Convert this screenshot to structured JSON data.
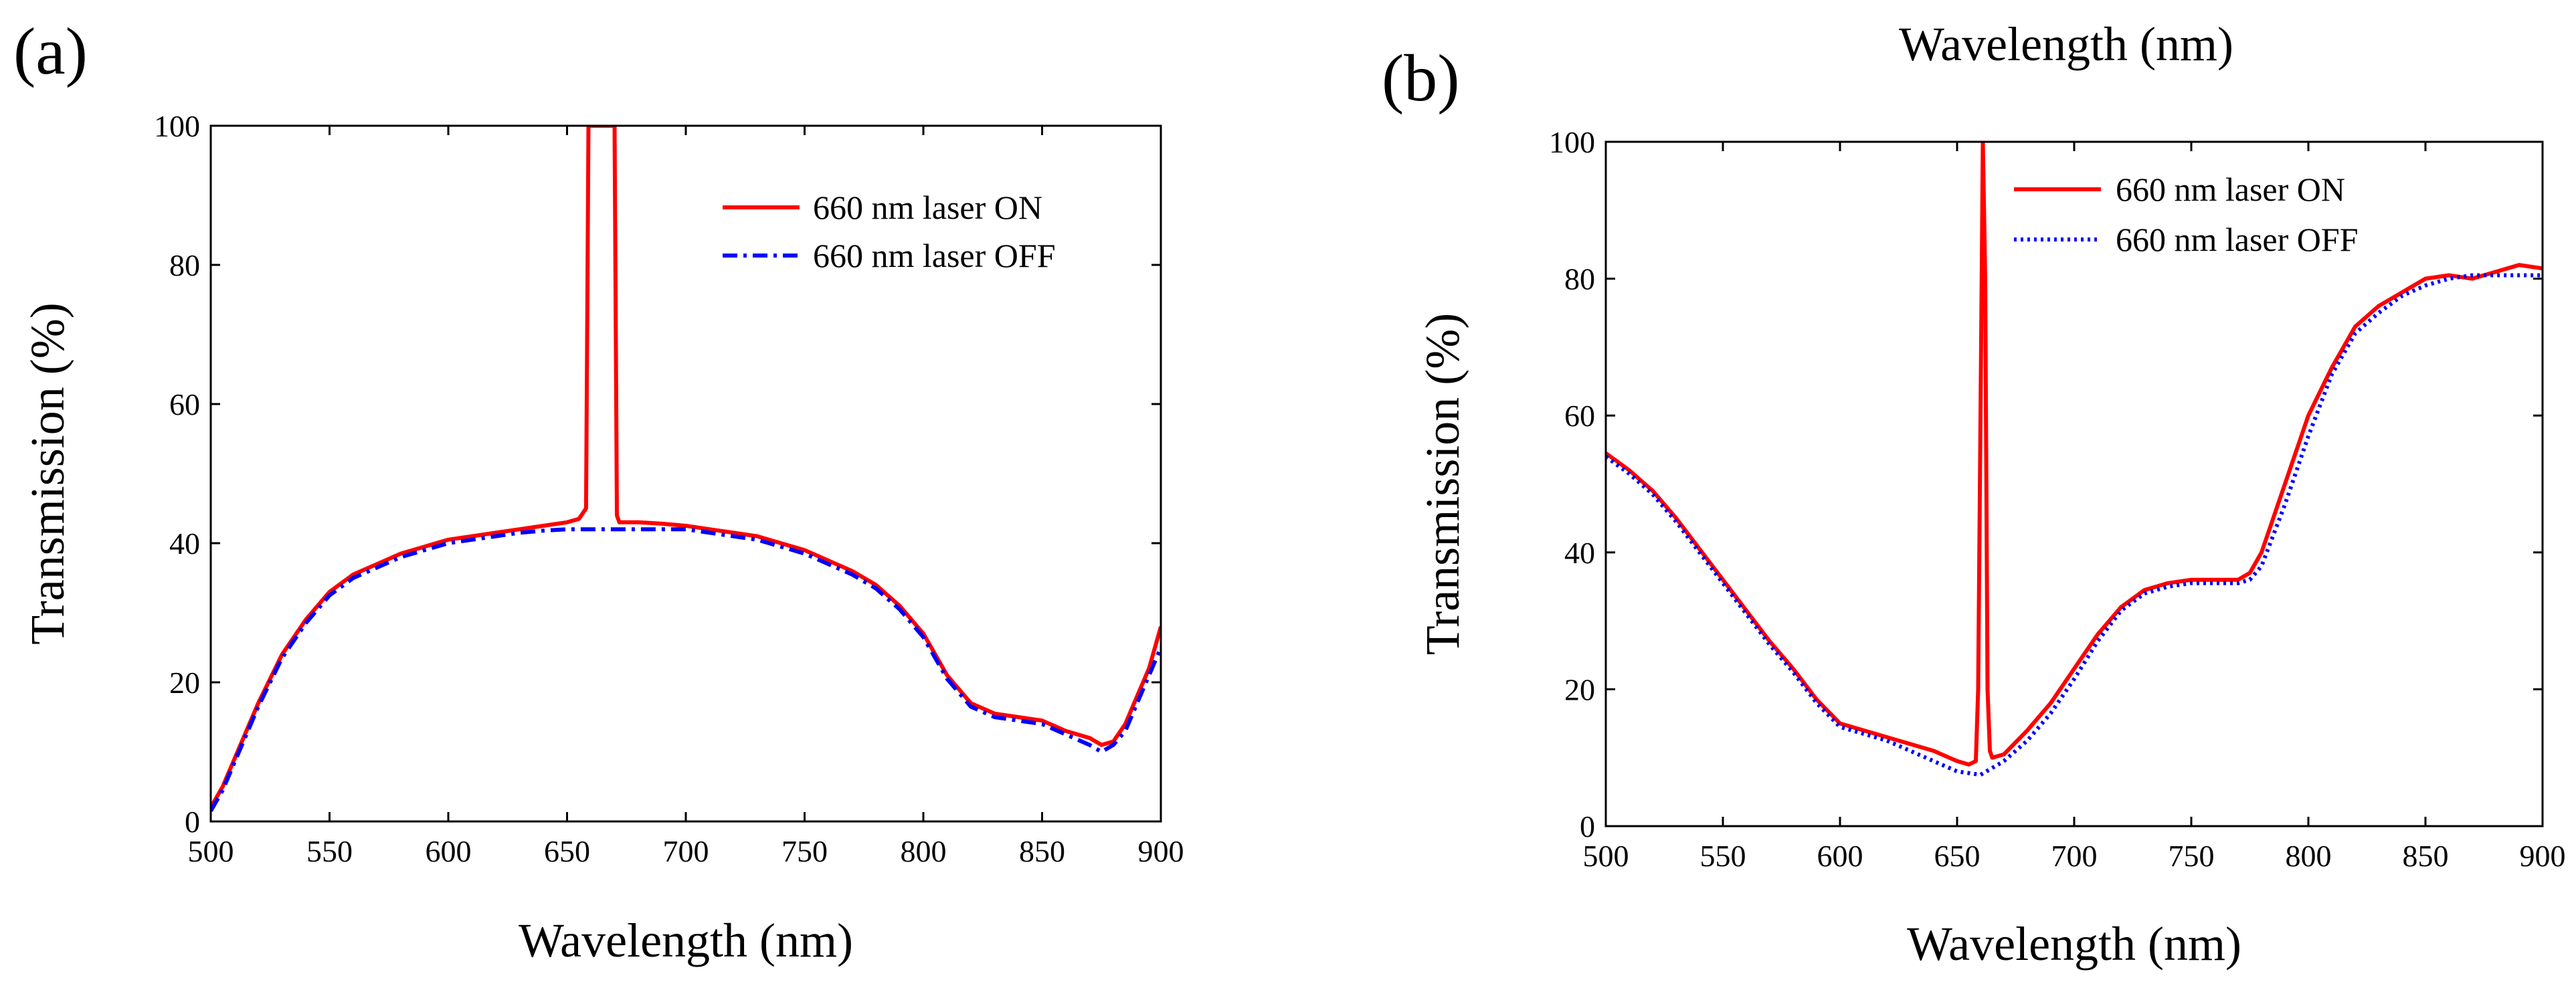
{
  "figure": {
    "top_caption": "Wavelength (nm)"
  },
  "chart_data": [
    {
      "panel_label": "(a)",
      "type": "line",
      "xlabel": "Wavelength (nm)",
      "ylabel": "Transmission (%)",
      "xlim": [
        500,
        900
      ],
      "ylim": [
        0,
        100
      ],
      "xticks": [
        500,
        550,
        600,
        650,
        700,
        750,
        800,
        850,
        900
      ],
      "yticks": [
        0,
        20,
        40,
        60,
        80,
        100
      ],
      "legend_position": "top-right",
      "series": [
        {
          "name": "660 nm laser ON",
          "color": "#ff0000",
          "style": "solid",
          "x": [
            500,
            505,
            510,
            520,
            530,
            540,
            550,
            560,
            570,
            580,
            590,
            600,
            610,
            620,
            630,
            640,
            650,
            655,
            658,
            659,
            660,
            661,
            668,
            669,
            670,
            671,
            672,
            680,
            690,
            700,
            710,
            720,
            730,
            740,
            750,
            760,
            770,
            780,
            790,
            800,
            810,
            820,
            830,
            840,
            850,
            860,
            870,
            875,
            880,
            885,
            890,
            895,
            900
          ],
          "y": [
            2,
            5,
            9,
            17,
            24,
            29,
            33,
            35.5,
            37,
            38.5,
            39.5,
            40.5,
            41,
            41.5,
            42,
            42.5,
            43,
            43.5,
            45,
            100,
            100,
            100,
            100,
            100,
            100,
            44,
            43,
            43,
            42.8,
            42.5,
            42,
            41.5,
            41,
            40,
            39,
            37.5,
            36,
            34,
            31,
            27,
            21,
            17,
            15.5,
            15,
            14.5,
            13,
            12,
            11,
            11.5,
            14,
            18,
            22,
            28
          ]
        },
        {
          "name": "660 nm laser OFF",
          "color": "#0000ff",
          "style": "dashdot",
          "x": [
            500,
            505,
            510,
            520,
            530,
            540,
            550,
            560,
            570,
            580,
            590,
            600,
            610,
            620,
            630,
            640,
            650,
            660,
            670,
            680,
            690,
            700,
            710,
            720,
            730,
            740,
            750,
            760,
            770,
            780,
            790,
            800,
            810,
            820,
            830,
            840,
            850,
            860,
            870,
            875,
            880,
            885,
            890,
            895,
            900
          ],
          "y": [
            1.5,
            4.5,
            8.5,
            16.5,
            23.5,
            28.5,
            32.5,
            35,
            36.5,
            38,
            39,
            40,
            40.5,
            41,
            41.5,
            41.8,
            42,
            42,
            42,
            42,
            42,
            42,
            41.5,
            41,
            40.5,
            39.5,
            38.5,
            37,
            35.5,
            33.5,
            30.5,
            26.5,
            20.5,
            16.5,
            15,
            14.5,
            14,
            12.5,
            11,
            10,
            11,
            13,
            17,
            21,
            25
          ]
        }
      ]
    },
    {
      "panel_label": "(b)",
      "type": "line",
      "xlabel": "Wavelength (nm)",
      "ylabel": "Transmission (%)",
      "xlim": [
        500,
        900
      ],
      "ylim": [
        0,
        100
      ],
      "xticks": [
        500,
        550,
        600,
        650,
        700,
        750,
        800,
        850,
        900
      ],
      "yticks": [
        0,
        20,
        40,
        60,
        80,
        100
      ],
      "legend_position": "top-right",
      "series": [
        {
          "name": "660 nm laser ON",
          "color": "#ff0000",
          "style": "solid",
          "x": [
            500,
            510,
            520,
            530,
            540,
            550,
            560,
            570,
            580,
            590,
            600,
            610,
            620,
            630,
            640,
            650,
            655,
            658,
            659,
            660,
            661,
            662,
            663,
            664,
            665,
            670,
            680,
            690,
            700,
            710,
            720,
            730,
            740,
            750,
            760,
            770,
            775,
            780,
            790,
            800,
            810,
            820,
            830,
            840,
            850,
            860,
            870,
            880,
            890,
            900
          ],
          "y": [
            54.5,
            52,
            49,
            45,
            40.5,
            36,
            31.5,
            27,
            23,
            18.5,
            15,
            14,
            13,
            12,
            11,
            9.5,
            9,
            9.5,
            20,
            60,
            100,
            80,
            20,
            11,
            10,
            10.5,
            14,
            18,
            23,
            28,
            32,
            34.5,
            35.5,
            36,
            36,
            36,
            37,
            40,
            50,
            60,
            67,
            73,
            76,
            78,
            80,
            80.5,
            80,
            81,
            82,
            81.5
          ]
        },
        {
          "name": "660 nm laser OFF",
          "color": "#0000ff",
          "style": "dotted",
          "x": [
            500,
            510,
            520,
            530,
            540,
            550,
            560,
            570,
            580,
            590,
            600,
            610,
            620,
            630,
            640,
            650,
            660,
            670,
            680,
            690,
            700,
            710,
            720,
            730,
            740,
            750,
            760,
            770,
            775,
            780,
            790,
            800,
            810,
            820,
            830,
            840,
            850,
            860,
            870,
            880,
            890,
            900
          ],
          "y": [
            54,
            51.5,
            48.5,
            44.5,
            40,
            35.5,
            31,
            26.5,
            22.5,
            18,
            14.5,
            13.5,
            12.5,
            11,
            9.5,
            8,
            7.5,
            9.5,
            12.5,
            16.5,
            21.5,
            27,
            31.5,
            34,
            35,
            35.5,
            35.5,
            35.5,
            36,
            38,
            47,
            57,
            66,
            72,
            75,
            77.5,
            79,
            80,
            80.5,
            80.5,
            80.5,
            80.5
          ]
        }
      ]
    }
  ]
}
